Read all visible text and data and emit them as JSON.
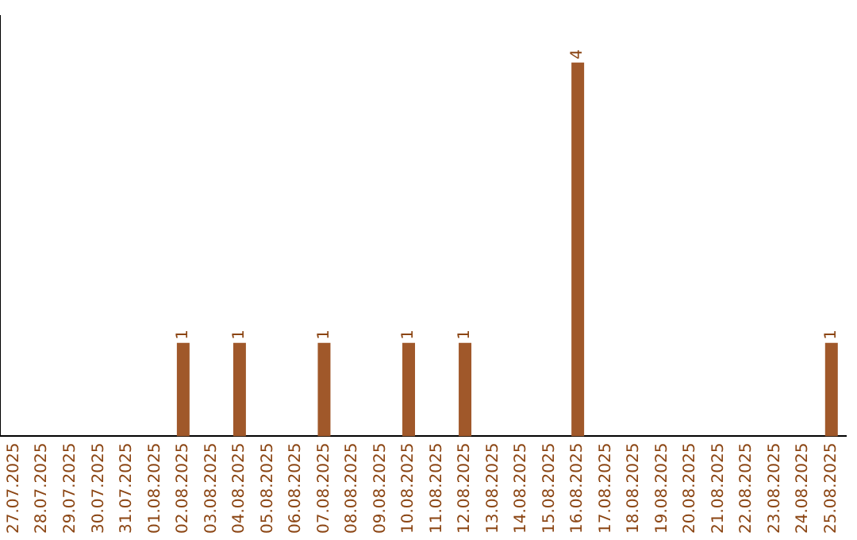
{
  "chart_data": {
    "type": "bar",
    "categories": [
      "27.07.2025",
      "28.07.2025",
      "29.07.2025",
      "30.07.2025",
      "31.07.2025",
      "01.08.2025",
      "02.08.2025",
      "03.08.2025",
      "04.08.2025",
      "05.08.2025",
      "06.08.2025",
      "07.08.2025",
      "08.08.2025",
      "09.08.2025",
      "10.08.2025",
      "11.08.2025",
      "12.08.2025",
      "13.08.2025",
      "14.08.2025",
      "15.08.2025",
      "16.08.2025",
      "17.08.2025",
      "18.08.2025",
      "19.08.2025",
      "20.08.2025",
      "21.08.2025",
      "22.08.2025",
      "23.08.2025",
      "24.08.2025",
      "25.08.2025"
    ],
    "values": [
      0,
      0,
      0,
      0,
      0,
      0,
      1,
      0,
      1,
      0,
      0,
      1,
      0,
      0,
      1,
      0,
      1,
      0,
      0,
      0,
      4,
      0,
      0,
      0,
      0,
      0,
      0,
      0,
      0,
      1
    ],
    "value_labels": [
      null,
      null,
      null,
      null,
      null,
      null,
      "1",
      null,
      "1",
      null,
      null,
      "1",
      null,
      null,
      "1",
      null,
      "1",
      null,
      null,
      null,
      "4",
      null,
      null,
      null,
      null,
      null,
      null,
      null,
      null,
      "1"
    ],
    "color": "#a0582a",
    "grid": false,
    "legend": false,
    "tick_labels": "x"
  }
}
